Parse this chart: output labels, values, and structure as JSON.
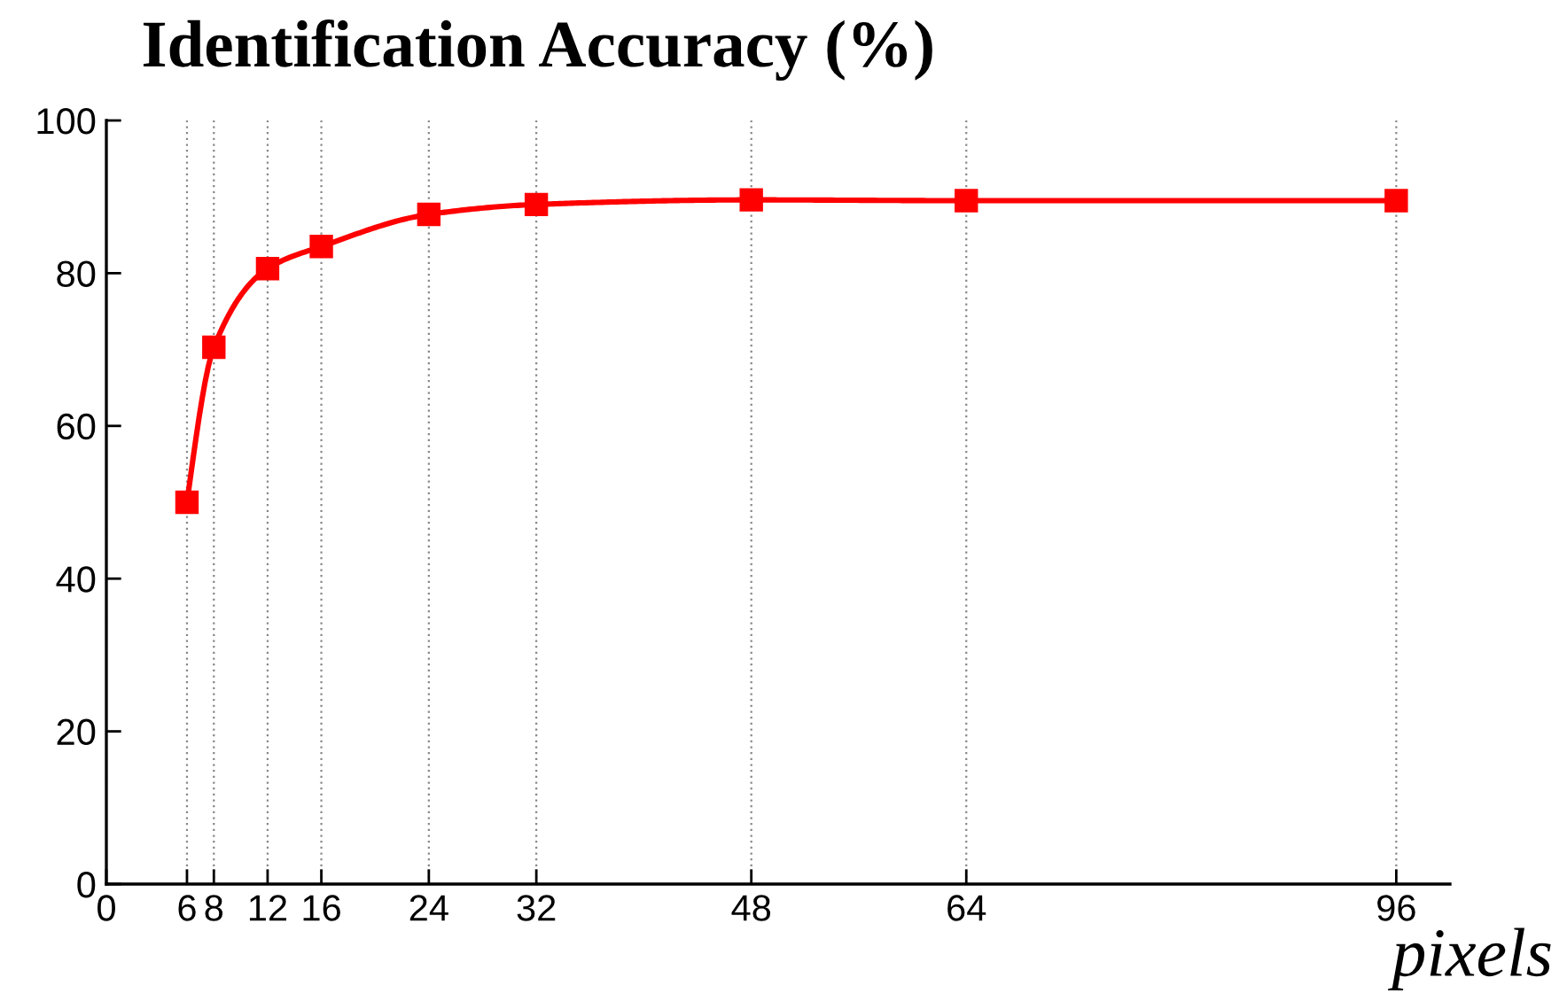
{
  "chart_data": {
    "type": "line",
    "title": "Identification Accuracy (%)",
    "xlabel": "pixels",
    "x": [
      6,
      8,
      12,
      16,
      24,
      32,
      48,
      64,
      96
    ],
    "series": [
      {
        "color": "#ff0000",
        "values": [
          50,
          70.3,
          80.6,
          83.5,
          87.7,
          89.0,
          89.6,
          89.5,
          89.5
        ]
      }
    ],
    "xlim": [
      0,
      100
    ],
    "xticks": [
      0,
      6,
      8,
      12,
      16,
      24,
      32,
      48,
      64,
      96
    ],
    "ylim": [
      0,
      100
    ],
    "yticks": [
      0,
      20,
      40,
      60,
      80,
      100
    ],
    "grid": "x",
    "marker": "square",
    "line_style": "solid"
  }
}
